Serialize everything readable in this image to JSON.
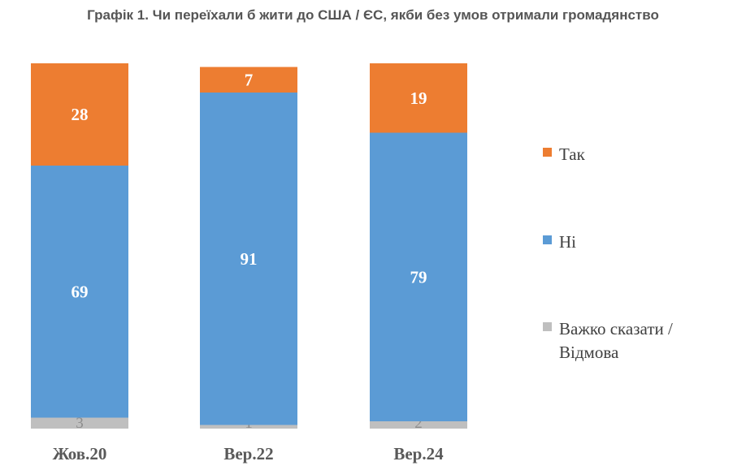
{
  "chart_data": {
    "type": "bar",
    "stacked": true,
    "title": "Графік 1. Чи переїхали б жити до США / ЄС, якби без умов отримали громадянство",
    "categories": [
      "Жов.20",
      "Вер.22",
      "Вер.24"
    ],
    "series": [
      {
        "name": "Важко сказати / Відмова",
        "color": "#bfbfbf",
        "values": [
          3,
          1,
          2
        ]
      },
      {
        "name": "Ні",
        "color": "#5b9bd5",
        "values": [
          69,
          91,
          79
        ]
      },
      {
        "name": "Так",
        "color": "#ed7d31",
        "values": [
          28,
          7,
          19
        ]
      }
    ],
    "legend": {
      "position": "right",
      "items": [
        {
          "text": "Так",
          "color": "#ed7d31"
        },
        {
          "text": "Ні",
          "color": "#5b9bd5"
        },
        {
          "lines": [
            "Важко сказати /",
            "Відмова"
          ],
          "color": "#bfbfbf"
        }
      ]
    },
    "ylim": [
      0,
      100
    ],
    "grid": false
  }
}
